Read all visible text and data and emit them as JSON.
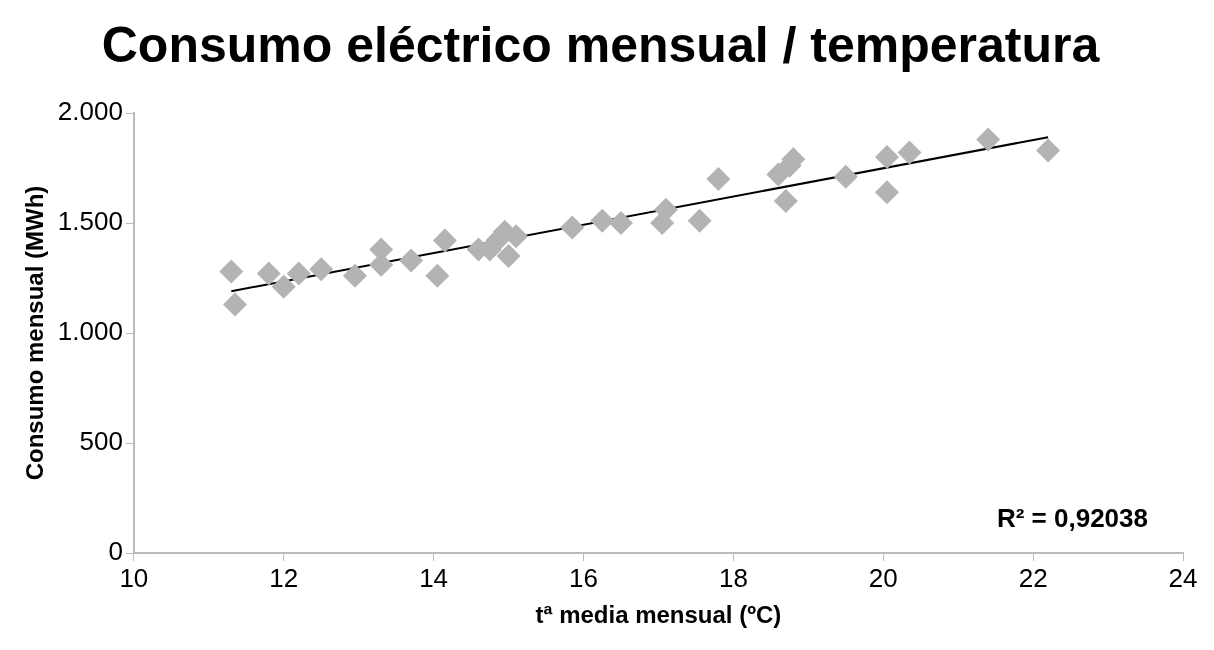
{
  "chart_data": {
    "type": "scatter",
    "title": "Consumo eléctrico mensual / temperatura",
    "xlabel": "tª media mensual (ºC)",
    "ylabel": "Consumo mensual (MWh)",
    "x": [
      11.3,
      11.35,
      11.8,
      12.0,
      12.2,
      12.5,
      12.95,
      13.3,
      13.3,
      13.7,
      14.05,
      14.15,
      14.6,
      14.75,
      14.85,
      14.95,
      15.0,
      15.1,
      15.85,
      16.25,
      16.5,
      17.05,
      17.1,
      17.55,
      17.8,
      18.6,
      18.7,
      18.75,
      18.8,
      19.5,
      20.05,
      20.05,
      20.35,
      21.4,
      22.2
    ],
    "series": [
      {
        "color": "#b3b3b3",
        "marker": "diamond",
        "values": [
          1280,
          1130,
          1270,
          1210,
          1270,
          1290,
          1260,
          1380,
          1310,
          1330,
          1260,
          1420,
          1380,
          1380,
          1420,
          1460,
          1350,
          1440,
          1480,
          1510,
          1500,
          1500,
          1560,
          1510,
          1700,
          1720,
          1600,
          1760,
          1790,
          1710,
          1640,
          1800,
          1820,
          1880,
          1830
        ]
      },
      {
        "type": "line",
        "color": "#000000",
        "marker": "none",
        "x": [
          11.3,
          22.2
        ],
        "values": [
          1190,
          1890
        ]
      }
    ],
    "xlim": [
      10,
      24
    ],
    "xticks": [
      10,
      12,
      14,
      16,
      18,
      20,
      22,
      24
    ],
    "ylim": [
      0,
      2000
    ],
    "yticks": [
      0,
      500,
      {
        "value": 1000,
        "label": "1.000"
      },
      {
        "value": 1500,
        "label": "1.500"
      },
      {
        "value": 2000,
        "label": "2.000"
      }
    ],
    "grid": false,
    "legend": false,
    "annotations": [
      "R² = 0,92038"
    ]
  }
}
